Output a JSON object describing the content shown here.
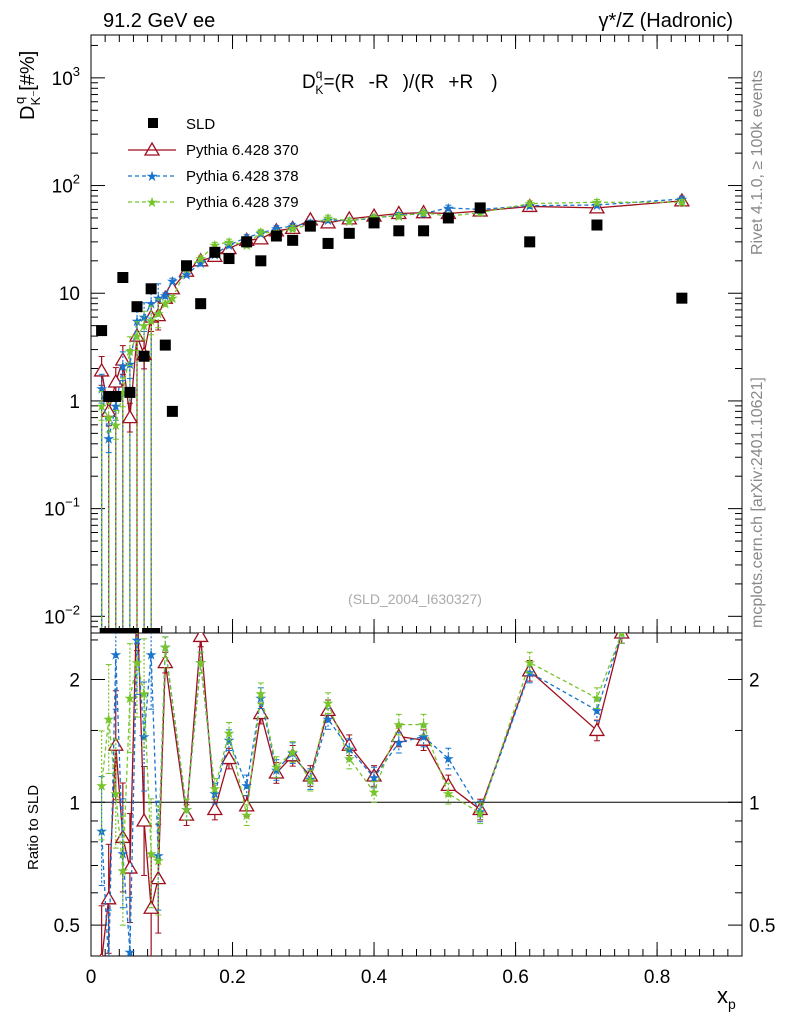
{
  "header": {
    "left": "91.2 GeV ee",
    "right": "γ*/Z (Hadronic)"
  },
  "formula": "D^q_K- = (R^q_K- - R^q_K+)/(R^q_K- + R^q_K+)",
  "formula_parts": {
    "d": "D",
    "q": "q",
    "k": "K",
    "minus": "-",
    "plus": "+",
    "r": "R",
    "eq": "=(",
    "mid": "-",
    "close1": ")/(",
    "add": "+",
    "close2": ")"
  },
  "side_labels": {
    "rivet": "Rivet 4.1.0, ≥ 100k events",
    "mcplots": "mcplots.cern.ch [arXiv:2401.10621]"
  },
  "watermark": "(SLD_2004_I630327)",
  "axis": {
    "ylabel_main": "D",
    "ylabel_sup": "q",
    "ylabel_sub": "K⁻",
    "ylabel_unit": "[#%]",
    "ylabel_ratio": "Ratio to SLD",
    "xlabel": "x",
    "xlabel_sub": "p"
  },
  "colors": {
    "sld": "#000000",
    "p370": "#9e0e1e",
    "p378": "#1874cd",
    "p379": "#76c52c"
  },
  "chart_data": [
    {
      "type": "scatter",
      "title": "D^q_K- vs x_p",
      "xlabel": "x_p",
      "ylabel": "D^q_K- [#%]",
      "yscale": "log",
      "xlim": [
        0,
        0.92
      ],
      "ylim": [
        0.007,
        2500
      ],
      "x_ticks": [
        "0",
        "0.2",
        "0.4",
        "0.6",
        "0.8"
      ],
      "y_ticks": [
        "10^-2",
        "10^-1",
        "1",
        "10",
        "10^2",
        "10^3"
      ],
      "legend": [
        "SLD",
        "Pythia 6.428 370",
        "Pythia 6.428 378",
        "Pythia 6.428 379"
      ],
      "series": [
        {
          "name": "SLD",
          "x": [
            0.015,
            0.025,
            0.035,
            0.045,
            0.055,
            0.065,
            0.075,
            0.085,
            0.105,
            0.115,
            0.135,
            0.155,
            0.175,
            0.195,
            0.22,
            0.24,
            0.262,
            0.285,
            0.31,
            0.335,
            0.365,
            0.4,
            0.435,
            0.47,
            0.505,
            0.55,
            0.62,
            0.715,
            0.835
          ],
          "values": [
            4.5,
            1.1,
            1.1,
            14,
            1.2,
            7.5,
            2.6,
            11,
            3.3,
            0.8,
            18,
            8,
            24,
            21,
            30,
            20,
            34,
            31,
            42,
            29,
            36,
            45,
            38,
            38,
            50,
            62,
            30,
            43,
            9
          ]
        },
        {
          "name": "Pythia 6.428 370",
          "x": [
            0.015,
            0.025,
            0.035,
            0.045,
            0.055,
            0.065,
            0.075,
            0.085,
            0.095,
            0.105,
            0.115,
            0.135,
            0.155,
            0.175,
            0.195,
            0.22,
            0.24,
            0.262,
            0.285,
            0.31,
            0.335,
            0.365,
            0.4,
            0.435,
            0.47,
            0.505,
            0.55,
            0.62,
            0.715,
            0.835
          ],
          "values": [
            1.9,
            0.8,
            1.5,
            2.4,
            0.7,
            4,
            2.7,
            6,
            6.2,
            9,
            11,
            16,
            20,
            22,
            26,
            31,
            32,
            38,
            40,
            48,
            45,
            49,
            52,
            55,
            56,
            55,
            58,
            64,
            62,
            72
          ]
        },
        {
          "name": "Pythia 6.428 378",
          "x": [
            0.015,
            0.025,
            0.035,
            0.045,
            0.055,
            0.065,
            0.075,
            0.085,
            0.095,
            0.105,
            0.115,
            0.135,
            0.155,
            0.175,
            0.195,
            0.22,
            0.24,
            0.262,
            0.285,
            0.31,
            0.335,
            0.365,
            0.4,
            0.435,
            0.47,
            0.505,
            0.55,
            0.62,
            0.715,
            0.835
          ],
          "values": [
            1.3,
            0.45,
            0.9,
            2.1,
            2.2,
            5.5,
            6,
            8,
            9,
            9.5,
            13,
            15,
            19,
            23,
            28,
            33,
            36,
            40,
            42,
            45,
            48,
            47,
            50,
            53,
            55,
            62,
            60,
            65,
            66,
            75
          ]
        },
        {
          "name": "Pythia 6.428 379",
          "x": [
            0.015,
            0.025,
            0.035,
            0.045,
            0.055,
            0.065,
            0.075,
            0.085,
            0.095,
            0.105,
            0.115,
            0.135,
            0.155,
            0.175,
            0.195,
            0.22,
            0.24,
            0.262,
            0.285,
            0.31,
            0.335,
            0.365,
            0.4,
            0.435,
            0.47,
            0.505,
            0.55,
            0.62,
            0.715,
            0.835
          ],
          "values": [
            0.9,
            0.7,
            0.6,
            1.2,
            2.9,
            4,
            5,
            5.6,
            6.5,
            8,
            9,
            17,
            21,
            28,
            30,
            28,
            37,
            36,
            40,
            43,
            50,
            47,
            51,
            52,
            56,
            52,
            56,
            68,
            70,
            70
          ]
        }
      ]
    },
    {
      "type": "line",
      "title": "Ratio to SLD",
      "xlabel": "x_p",
      "ylabel": "Ratio to SLD",
      "yscale": "log",
      "xlim": [
        0,
        0.92
      ],
      "ylim": [
        0.42,
        2.6
      ],
      "x_ticks": [
        "0",
        "0.2",
        "0.4",
        "0.6",
        "0.8"
      ],
      "y_ticks": [
        "0.5",
        "1",
        "2"
      ],
      "series": [
        {
          "name": "Pythia 6.428 370",
          "x": [
            0.015,
            0.025,
            0.035,
            0.045,
            0.055,
            0.065,
            0.075,
            0.085,
            0.095,
            0.105,
            0.135,
            0.155,
            0.175,
            0.195,
            0.22,
            0.24,
            0.262,
            0.285,
            0.31,
            0.335,
            0.365,
            0.4,
            0.435,
            0.47,
            0.505,
            0.55,
            0.62,
            0.715,
            0.75
          ],
          "values": [
            0.41,
            0.58,
            1.38,
            0.82,
            0.69,
            3.2,
            0.9,
            0.55,
            0.65,
            2.2,
            0.93,
            2.55,
            0.96,
            1.28,
            0.98,
            1.65,
            1.18,
            1.3,
            1.16,
            1.68,
            1.38,
            1.16,
            1.45,
            1.42,
            1.1,
            0.96,
            2.1,
            1.5,
            2.6
          ]
        },
        {
          "name": "Pythia 6.428 378",
          "x": [
            0.015,
            0.025,
            0.035,
            0.045,
            0.055,
            0.065,
            0.075,
            0.085,
            0.095,
            0.105,
            0.135,
            0.155,
            0.175,
            0.195,
            0.22,
            0.24,
            0.262,
            0.285,
            0.31,
            0.335,
            0.365,
            0.4,
            0.435,
            0.47,
            0.505,
            0.55,
            0.62,
            0.715,
            0.75
          ],
          "values": [
            0.85,
            0.4,
            2.3,
            0.75,
            0.43,
            2.5,
            1.45,
            2.3,
            0.74,
            2.4,
            0.96,
            2.2,
            1.05,
            1.42,
            1.1,
            1.8,
            1.2,
            1.32,
            1.14,
            1.6,
            1.35,
            1.15,
            1.4,
            1.45,
            1.28,
            0.95,
            2.08,
            1.68,
            2.6
          ]
        },
        {
          "name": "Pythia 6.428 379",
          "x": [
            0.015,
            0.025,
            0.035,
            0.045,
            0.055,
            0.065,
            0.075,
            0.085,
            0.095,
            0.105,
            0.135,
            0.155,
            0.175,
            0.195,
            0.22,
            0.24,
            0.262,
            0.285,
            0.31,
            0.335,
            0.365,
            0.4,
            0.435,
            0.47,
            0.505,
            0.55,
            0.62,
            0.715,
            0.75
          ],
          "values": [
            1.1,
            1.6,
            1.05,
            0.68,
            1.8,
            2.2,
            1.85,
            0.75,
            0.72,
            2.4,
            0.96,
            2.2,
            1.08,
            1.48,
            0.93,
            1.85,
            1.22,
            1.33,
            1.13,
            1.75,
            1.28,
            1.06,
            1.55,
            1.55,
            1.05,
            0.94,
            2.2,
            1.8,
            2.6
          ]
        }
      ]
    }
  ]
}
